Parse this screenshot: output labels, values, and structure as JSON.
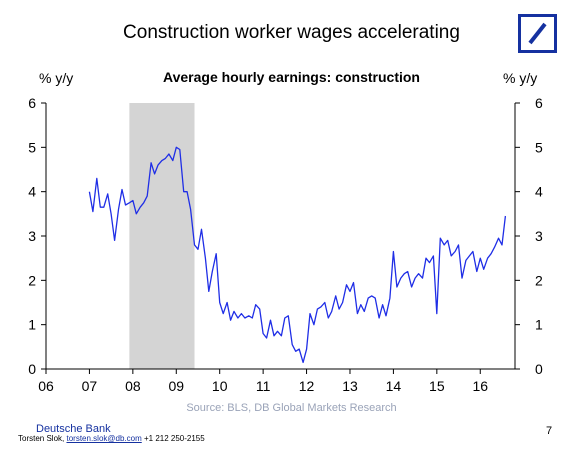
{
  "page": {
    "title": "Construction worker wages accelerating",
    "brand": "Deutsche Bank",
    "contact_name": "Torsten Slok,",
    "contact_email": "torsten.slok@db.com",
    "contact_phone": "+1 212 250-2155",
    "page_number": "7",
    "source": "Source: BLS, DB Global Markets Research"
  },
  "colors": {
    "line": "#1f2ee6",
    "recession": "#d4d4d4",
    "brand": "#1531a0"
  },
  "chart_data": {
    "type": "line",
    "title": "Average hourly earnings: construction",
    "ylabel_left": "% y/y",
    "ylabel_right": "% y/y",
    "xlim": [
      2006,
      2016.8
    ],
    "ylim": [
      0,
      6
    ],
    "yticks": [
      0,
      1,
      2,
      3,
      4,
      5,
      6
    ],
    "xticks": [
      2006,
      2007,
      2008,
      2009,
      2010,
      2011,
      2012,
      2013,
      2014,
      2015,
      2016
    ],
    "xtick_labels": [
      "06",
      "07",
      "08",
      "09",
      "10",
      "11",
      "12",
      "13",
      "14",
      "15",
      "16"
    ],
    "grid": false,
    "recession": [
      2007.92,
      2009.42
    ],
    "series": [
      {
        "values": [
          [
            2007.0,
            4.0
          ],
          [
            2007.08,
            3.55
          ],
          [
            2007.17,
            4.3
          ],
          [
            2007.25,
            3.65
          ],
          [
            2007.33,
            3.65
          ],
          [
            2007.42,
            3.95
          ],
          [
            2007.5,
            3.5
          ],
          [
            2007.58,
            2.9
          ],
          [
            2007.67,
            3.6
          ],
          [
            2007.75,
            4.05
          ],
          [
            2007.83,
            3.7
          ],
          [
            2007.92,
            3.75
          ],
          [
            2008.0,
            3.8
          ],
          [
            2008.08,
            3.5
          ],
          [
            2008.17,
            3.65
          ],
          [
            2008.25,
            3.75
          ],
          [
            2008.33,
            3.9
          ],
          [
            2008.42,
            4.65
          ],
          [
            2008.5,
            4.4
          ],
          [
            2008.58,
            4.6
          ],
          [
            2008.67,
            4.7
          ],
          [
            2008.75,
            4.75
          ],
          [
            2008.83,
            4.85
          ],
          [
            2008.92,
            4.7
          ],
          [
            2009.0,
            5.0
          ],
          [
            2009.08,
            4.95
          ],
          [
            2009.17,
            4.0
          ],
          [
            2009.25,
            4.0
          ],
          [
            2009.33,
            3.6
          ],
          [
            2009.42,
            2.8
          ],
          [
            2009.5,
            2.7
          ],
          [
            2009.58,
            3.15
          ],
          [
            2009.67,
            2.5
          ],
          [
            2009.75,
            1.75
          ],
          [
            2009.83,
            2.2
          ],
          [
            2009.92,
            2.6
          ],
          [
            2010.0,
            1.5
          ],
          [
            2010.08,
            1.25
          ],
          [
            2010.17,
            1.5
          ],
          [
            2010.25,
            1.1
          ],
          [
            2010.33,
            1.3
          ],
          [
            2010.42,
            1.15
          ],
          [
            2010.5,
            1.25
          ],
          [
            2010.58,
            1.15
          ],
          [
            2010.67,
            1.2
          ],
          [
            2010.75,
            1.15
          ],
          [
            2010.83,
            1.45
          ],
          [
            2010.92,
            1.35
          ],
          [
            2011.0,
            0.8
          ],
          [
            2011.08,
            0.7
          ],
          [
            2011.17,
            1.1
          ],
          [
            2011.25,
            0.75
          ],
          [
            2011.33,
            0.85
          ],
          [
            2011.42,
            0.75
          ],
          [
            2011.5,
            1.15
          ],
          [
            2011.58,
            1.2
          ],
          [
            2011.67,
            0.55
          ],
          [
            2011.75,
            0.4
          ],
          [
            2011.83,
            0.45
          ],
          [
            2011.92,
            0.15
          ],
          [
            2012.0,
            0.45
          ],
          [
            2012.08,
            1.25
          ],
          [
            2012.17,
            1.0
          ],
          [
            2012.25,
            1.35
          ],
          [
            2012.33,
            1.4
          ],
          [
            2012.42,
            1.5
          ],
          [
            2012.5,
            1.15
          ],
          [
            2012.58,
            1.3
          ],
          [
            2012.67,
            1.65
          ],
          [
            2012.75,
            1.35
          ],
          [
            2012.83,
            1.5
          ],
          [
            2012.92,
            1.9
          ],
          [
            2013.0,
            1.75
          ],
          [
            2013.08,
            1.95
          ],
          [
            2013.17,
            1.25
          ],
          [
            2013.25,
            1.45
          ],
          [
            2013.33,
            1.3
          ],
          [
            2013.42,
            1.6
          ],
          [
            2013.5,
            1.65
          ],
          [
            2013.58,
            1.6
          ],
          [
            2013.67,
            1.15
          ],
          [
            2013.75,
            1.45
          ],
          [
            2013.83,
            1.2
          ],
          [
            2013.92,
            1.6
          ],
          [
            2014.0,
            2.65
          ],
          [
            2014.08,
            1.85
          ],
          [
            2014.17,
            2.05
          ],
          [
            2014.25,
            2.15
          ],
          [
            2014.33,
            2.2
          ],
          [
            2014.42,
            1.85
          ],
          [
            2014.5,
            2.05
          ],
          [
            2014.58,
            2.15
          ],
          [
            2014.67,
            2.05
          ],
          [
            2014.75,
            2.5
          ],
          [
            2014.83,
            2.4
          ],
          [
            2014.92,
            2.55
          ],
          [
            2015.0,
            1.25
          ],
          [
            2015.08,
            2.95
          ],
          [
            2015.17,
            2.8
          ],
          [
            2015.25,
            2.9
          ],
          [
            2015.33,
            2.55
          ],
          [
            2015.42,
            2.65
          ],
          [
            2015.5,
            2.8
          ],
          [
            2015.58,
            2.05
          ],
          [
            2015.67,
            2.45
          ],
          [
            2015.75,
            2.55
          ],
          [
            2015.83,
            2.65
          ],
          [
            2015.92,
            2.2
          ],
          [
            2016.0,
            2.5
          ],
          [
            2016.08,
            2.25
          ],
          [
            2016.17,
            2.5
          ],
          [
            2016.25,
            2.6
          ],
          [
            2016.33,
            2.75
          ],
          [
            2016.42,
            2.95
          ],
          [
            2016.5,
            2.8
          ],
          [
            2016.58,
            3.45
          ]
        ]
      }
    ]
  }
}
